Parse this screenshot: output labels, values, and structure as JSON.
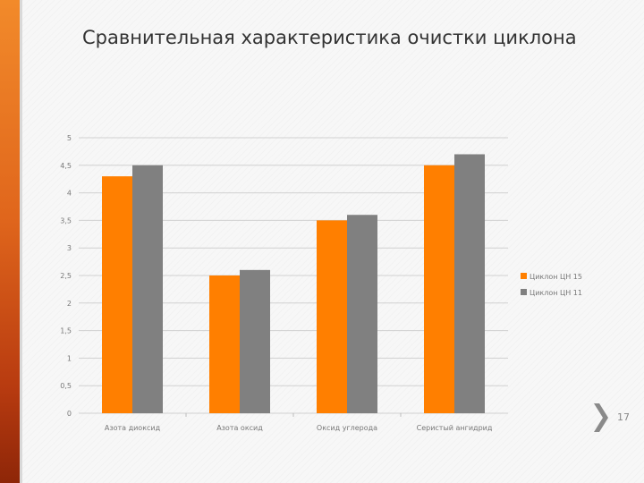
{
  "slide": {
    "title": "Сравнительная характеристика очистки циклона",
    "page_number": "17",
    "colors": {
      "accent": "#f28a2a",
      "series1": "#ff7f00",
      "series2": "#808080"
    }
  },
  "chart_data": {
    "type": "bar",
    "title": "",
    "xlabel": "",
    "ylabel": "",
    "categories": [
      "Азота диоксид",
      "Азота оксид",
      "Оксид углерода",
      "Серистый ангидрид"
    ],
    "series": [
      {
        "name": "Циклон ЦН 15",
        "values": [
          4.3,
          2.5,
          3.5,
          4.5
        ],
        "color": "#ff7f00"
      },
      {
        "name": "Циклон ЦН 11",
        "values": [
          4.5,
          2.6,
          3.6,
          4.7
        ],
        "color": "#808080"
      }
    ],
    "ylim": [
      0,
      5
    ],
    "yticks": [
      "0",
      "0,5",
      "1",
      "1,5",
      "2",
      "2,5",
      "3",
      "3,5",
      "4",
      "4,5",
      "5"
    ],
    "grid": true,
    "legend": "right"
  }
}
